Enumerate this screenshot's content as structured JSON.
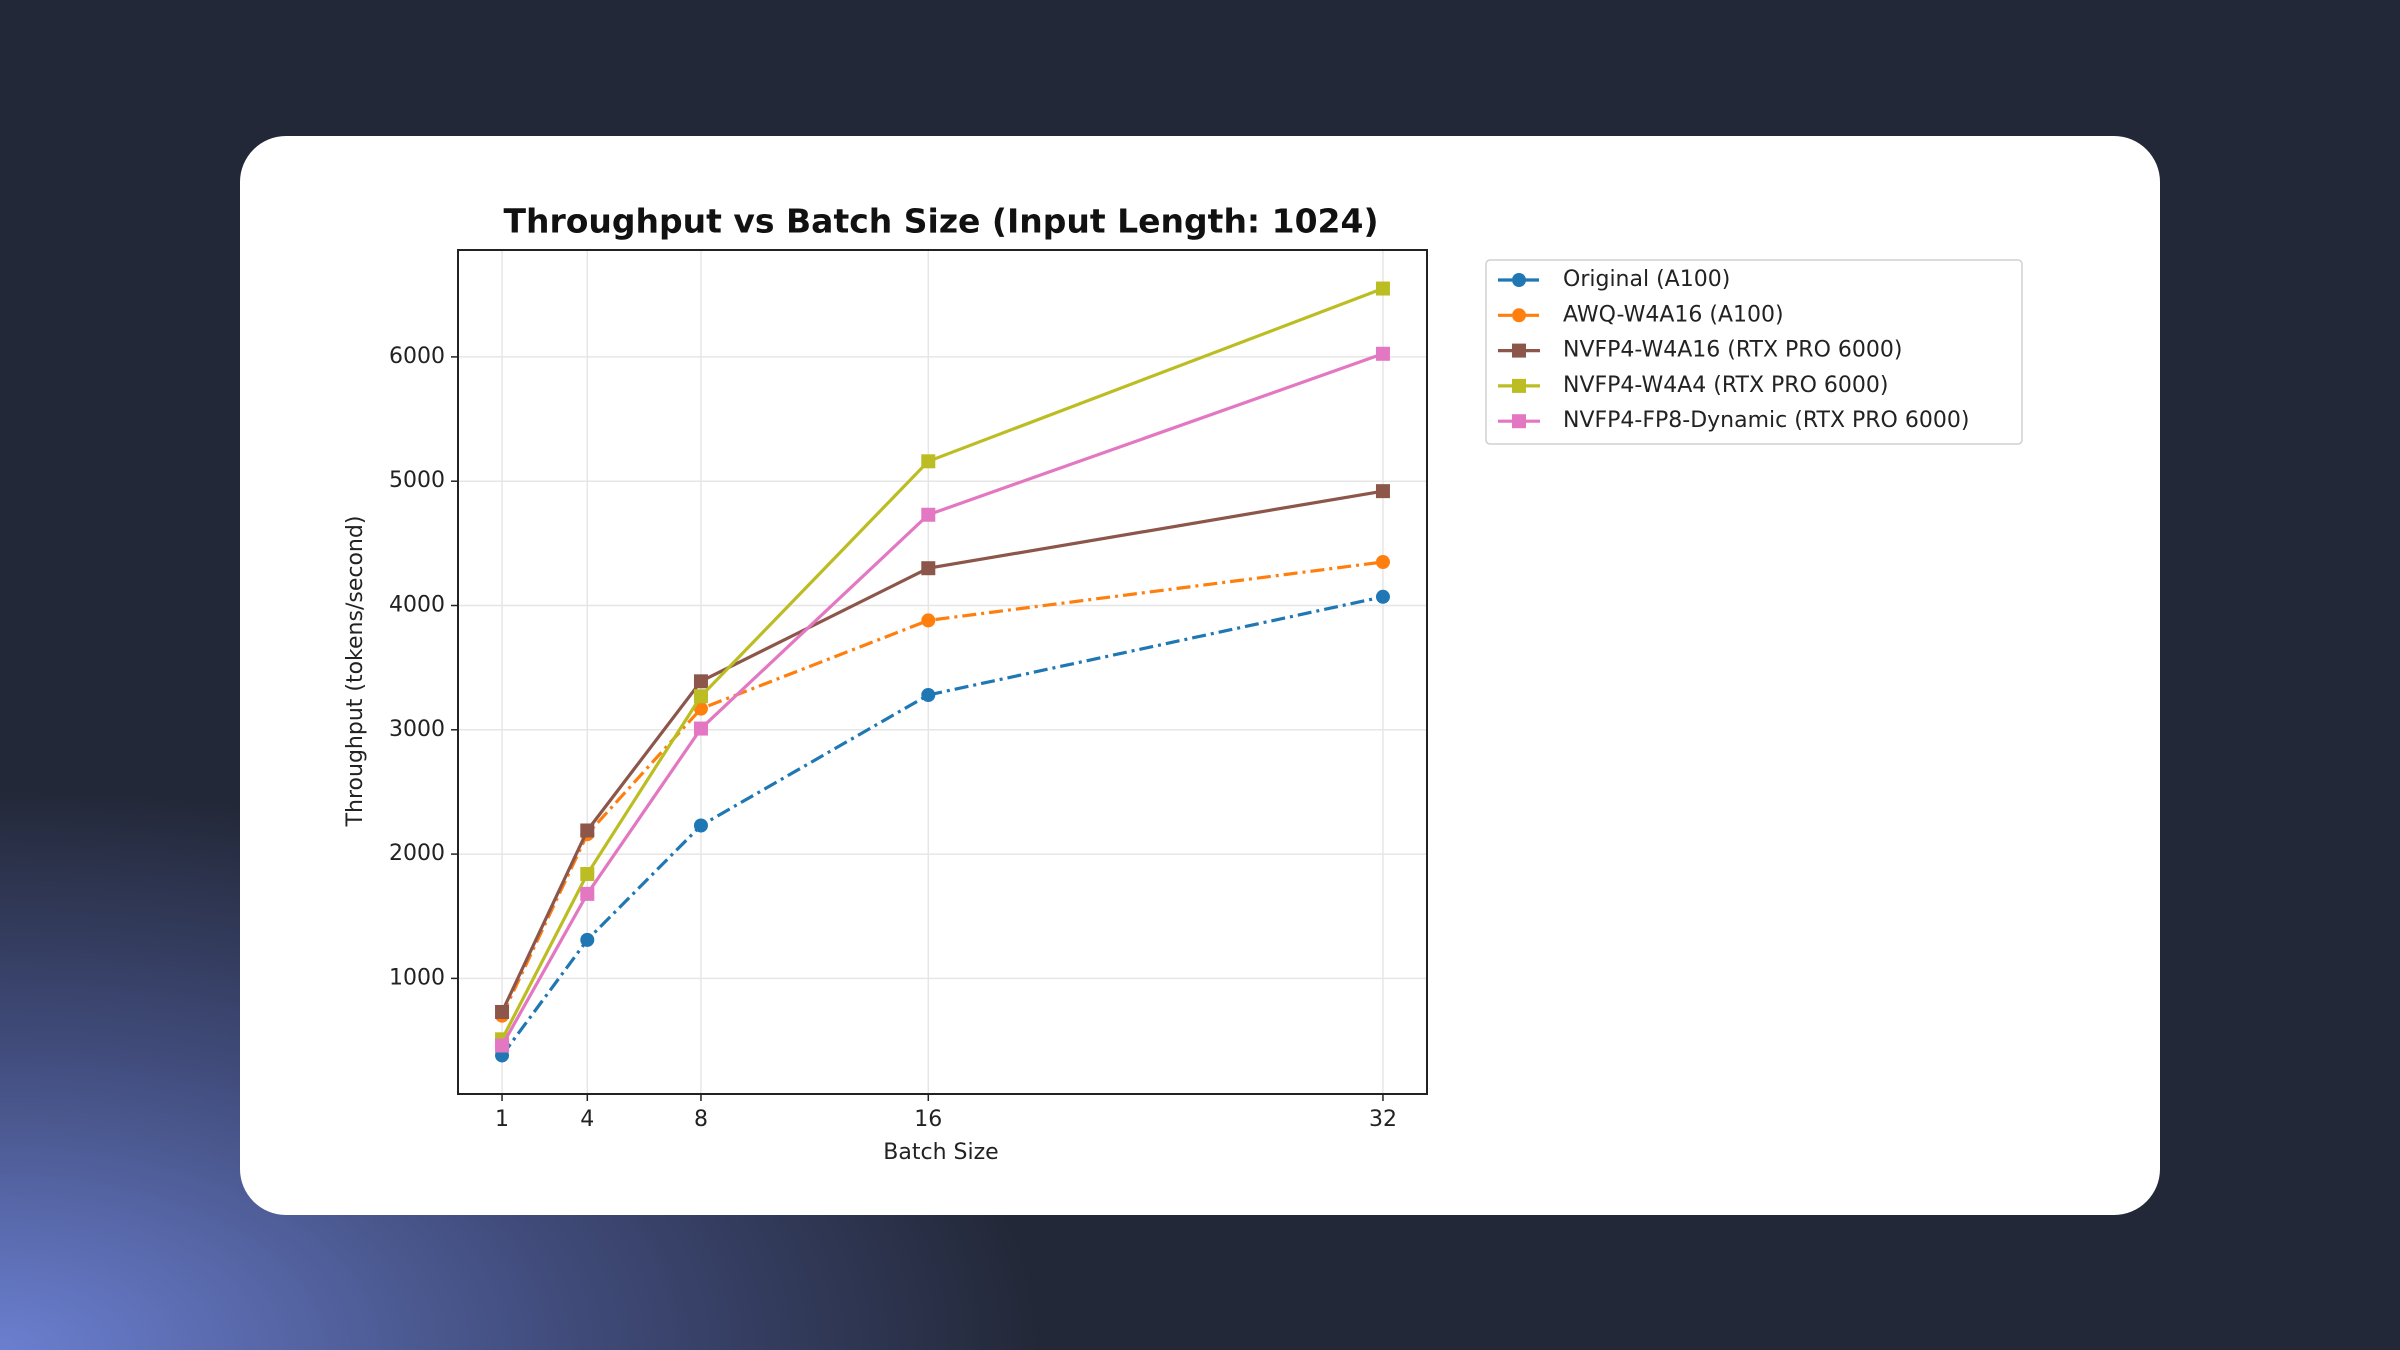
{
  "chart_data": {
    "type": "line",
    "title": "Throughput vs Batch Size (Input Length: 1024)",
    "x_label": "Batch Size",
    "y_label": "Throughput (tokens/second)",
    "x": [
      1,
      4,
      8,
      16,
      32
    ],
    "xlim": [
      -0.55,
      33.55
    ],
    "xticks": [
      1,
      4,
      8,
      16,
      32
    ],
    "ylim": [
      70,
      6860
    ],
    "yticks": [
      1000,
      2000,
      3000,
      4000,
      5000,
      6000
    ],
    "grid": true,
    "legend": "outside upper right",
    "series": [
      {
        "name": "Original (A100)",
        "color": "#1f77b4",
        "linestyle": "dashdot",
        "marker": "circle",
        "values": [
          380,
          1310,
          2230,
          3280,
          4070
        ]
      },
      {
        "name": "AWQ-W4A16 (A100)",
        "color": "#ff7f0e",
        "linestyle": "dashdot",
        "marker": "circle",
        "values": [
          700,
          2160,
          3170,
          3880,
          4350
        ]
      },
      {
        "name": "NVFP4-W4A16 (RTX PRO 6000)",
        "color": "#8c564b",
        "linestyle": "solid",
        "marker": "square",
        "values": [
          730,
          2190,
          3390,
          4300,
          4920
        ]
      },
      {
        "name": "NVFP4-W4A4 (RTX PRO 6000)",
        "color": "#bcbd22",
        "linestyle": "solid",
        "marker": "square",
        "values": [
          510,
          1840,
          3270,
          5160,
          6550
        ]
      },
      {
        "name": "NVFP4-FP8-Dynamic (RTX PRO 6000)",
        "color": "#e377c2",
        "linestyle": "solid",
        "marker": "square",
        "values": [
          460,
          1680,
          3010,
          4730,
          6025
        ]
      }
    ]
  }
}
